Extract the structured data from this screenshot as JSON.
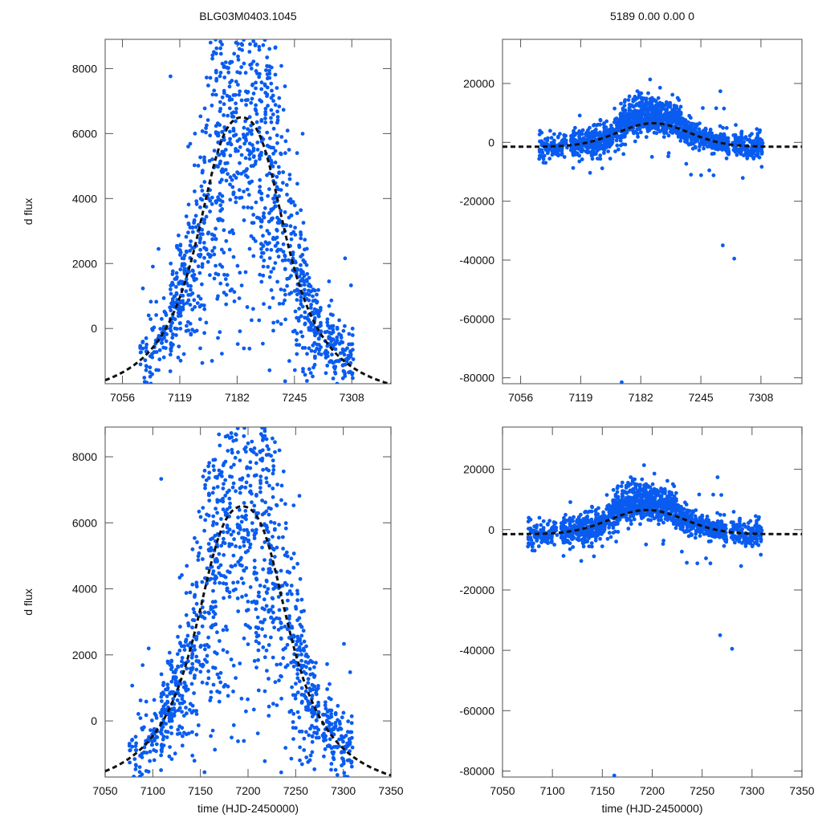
{
  "chart_data": [
    {
      "id": "top-left",
      "type": "scatter",
      "title": "BLG03M0403.1045",
      "xlabel": "",
      "ylabel": "d flux",
      "xlim": [
        7037,
        7351
      ],
      "ylim": [
        -1700,
        8900
      ],
      "xticks": [
        7056,
        7119,
        7182,
        7245,
        7308
      ],
      "yticks": [
        0,
        2000,
        4000,
        6000,
        8000
      ],
      "model": {
        "t0": 7187,
        "peak": 6500,
        "base": -2400,
        "tE": 48,
        "scale": "linear"
      },
      "point_color": "#0a5cf0",
      "seed": 11
    },
    {
      "id": "top-right",
      "type": "scatter",
      "title": "5189  0.00  0.00  0",
      "xlabel": "",
      "ylabel": "",
      "xlim": [
        7037,
        7351
      ],
      "ylim": [
        -82000,
        35000
      ],
      "xticks": [
        7056,
        7119,
        7182,
        7245,
        7308
      ],
      "yticks": [
        -80000,
        -60000,
        -40000,
        -20000,
        0,
        20000
      ],
      "model": {
        "t0": 7195,
        "peak": 6500,
        "base": -2400,
        "tE": 48,
        "scale": "wide"
      },
      "point_color": "#0a5cf0",
      "outliers": [
        {
          "x": 7162,
          "y": -81500
        },
        {
          "x": 7268,
          "y": -35000
        },
        {
          "x": 7280,
          "y": -39500
        }
      ],
      "seed": 23
    },
    {
      "id": "bottom-left",
      "type": "scatter",
      "title": "",
      "xlabel": "time (HJD-2450000)",
      "ylabel": "d flux",
      "xlim": [
        7050,
        7350
      ],
      "ylim": [
        -1700,
        8900
      ],
      "xticks": [
        7050,
        7100,
        7150,
        7200,
        7250,
        7300,
        7350
      ],
      "yticks": [
        0,
        2000,
        4000,
        6000,
        8000
      ],
      "model": {
        "t0": 7194,
        "peak": 6500,
        "base": -2400,
        "tE": 48,
        "scale": "linear"
      },
      "point_color": "#0a5cf0",
      "seed": 11
    },
    {
      "id": "bottom-right",
      "type": "scatter",
      "title": "",
      "xlabel": "time (HJD-2450000)",
      "ylabel": "",
      "xlim": [
        7050,
        7350
      ],
      "ylim": [
        -82000,
        34000
      ],
      "xticks": [
        7050,
        7100,
        7150,
        7200,
        7250,
        7300,
        7350
      ],
      "yticks": [
        -80000,
        -60000,
        -40000,
        -20000,
        0,
        20000
      ],
      "model": {
        "t0": 7195,
        "peak": 6500,
        "base": -2400,
        "tE": 48,
        "scale": "wide"
      },
      "point_color": "#0a5cf0",
      "outliers": [
        {
          "x": 7162,
          "y": -81500
        },
        {
          "x": 7268,
          "y": -35000
        },
        {
          "x": 7280,
          "y": -39500
        }
      ],
      "seed": 23
    }
  ],
  "observation_seasons": [
    {
      "t_start": 7075,
      "t_end": 7105,
      "density": 120
    },
    {
      "t_start": 7108,
      "t_end": 7160,
      "density": 420
    },
    {
      "t_start": 7160,
      "t_end": 7225,
      "density": 700
    },
    {
      "t_start": 7225,
      "t_end": 7275,
      "density": 380
    },
    {
      "t_start": 7278,
      "t_end": 7310,
      "density": 180
    }
  ]
}
